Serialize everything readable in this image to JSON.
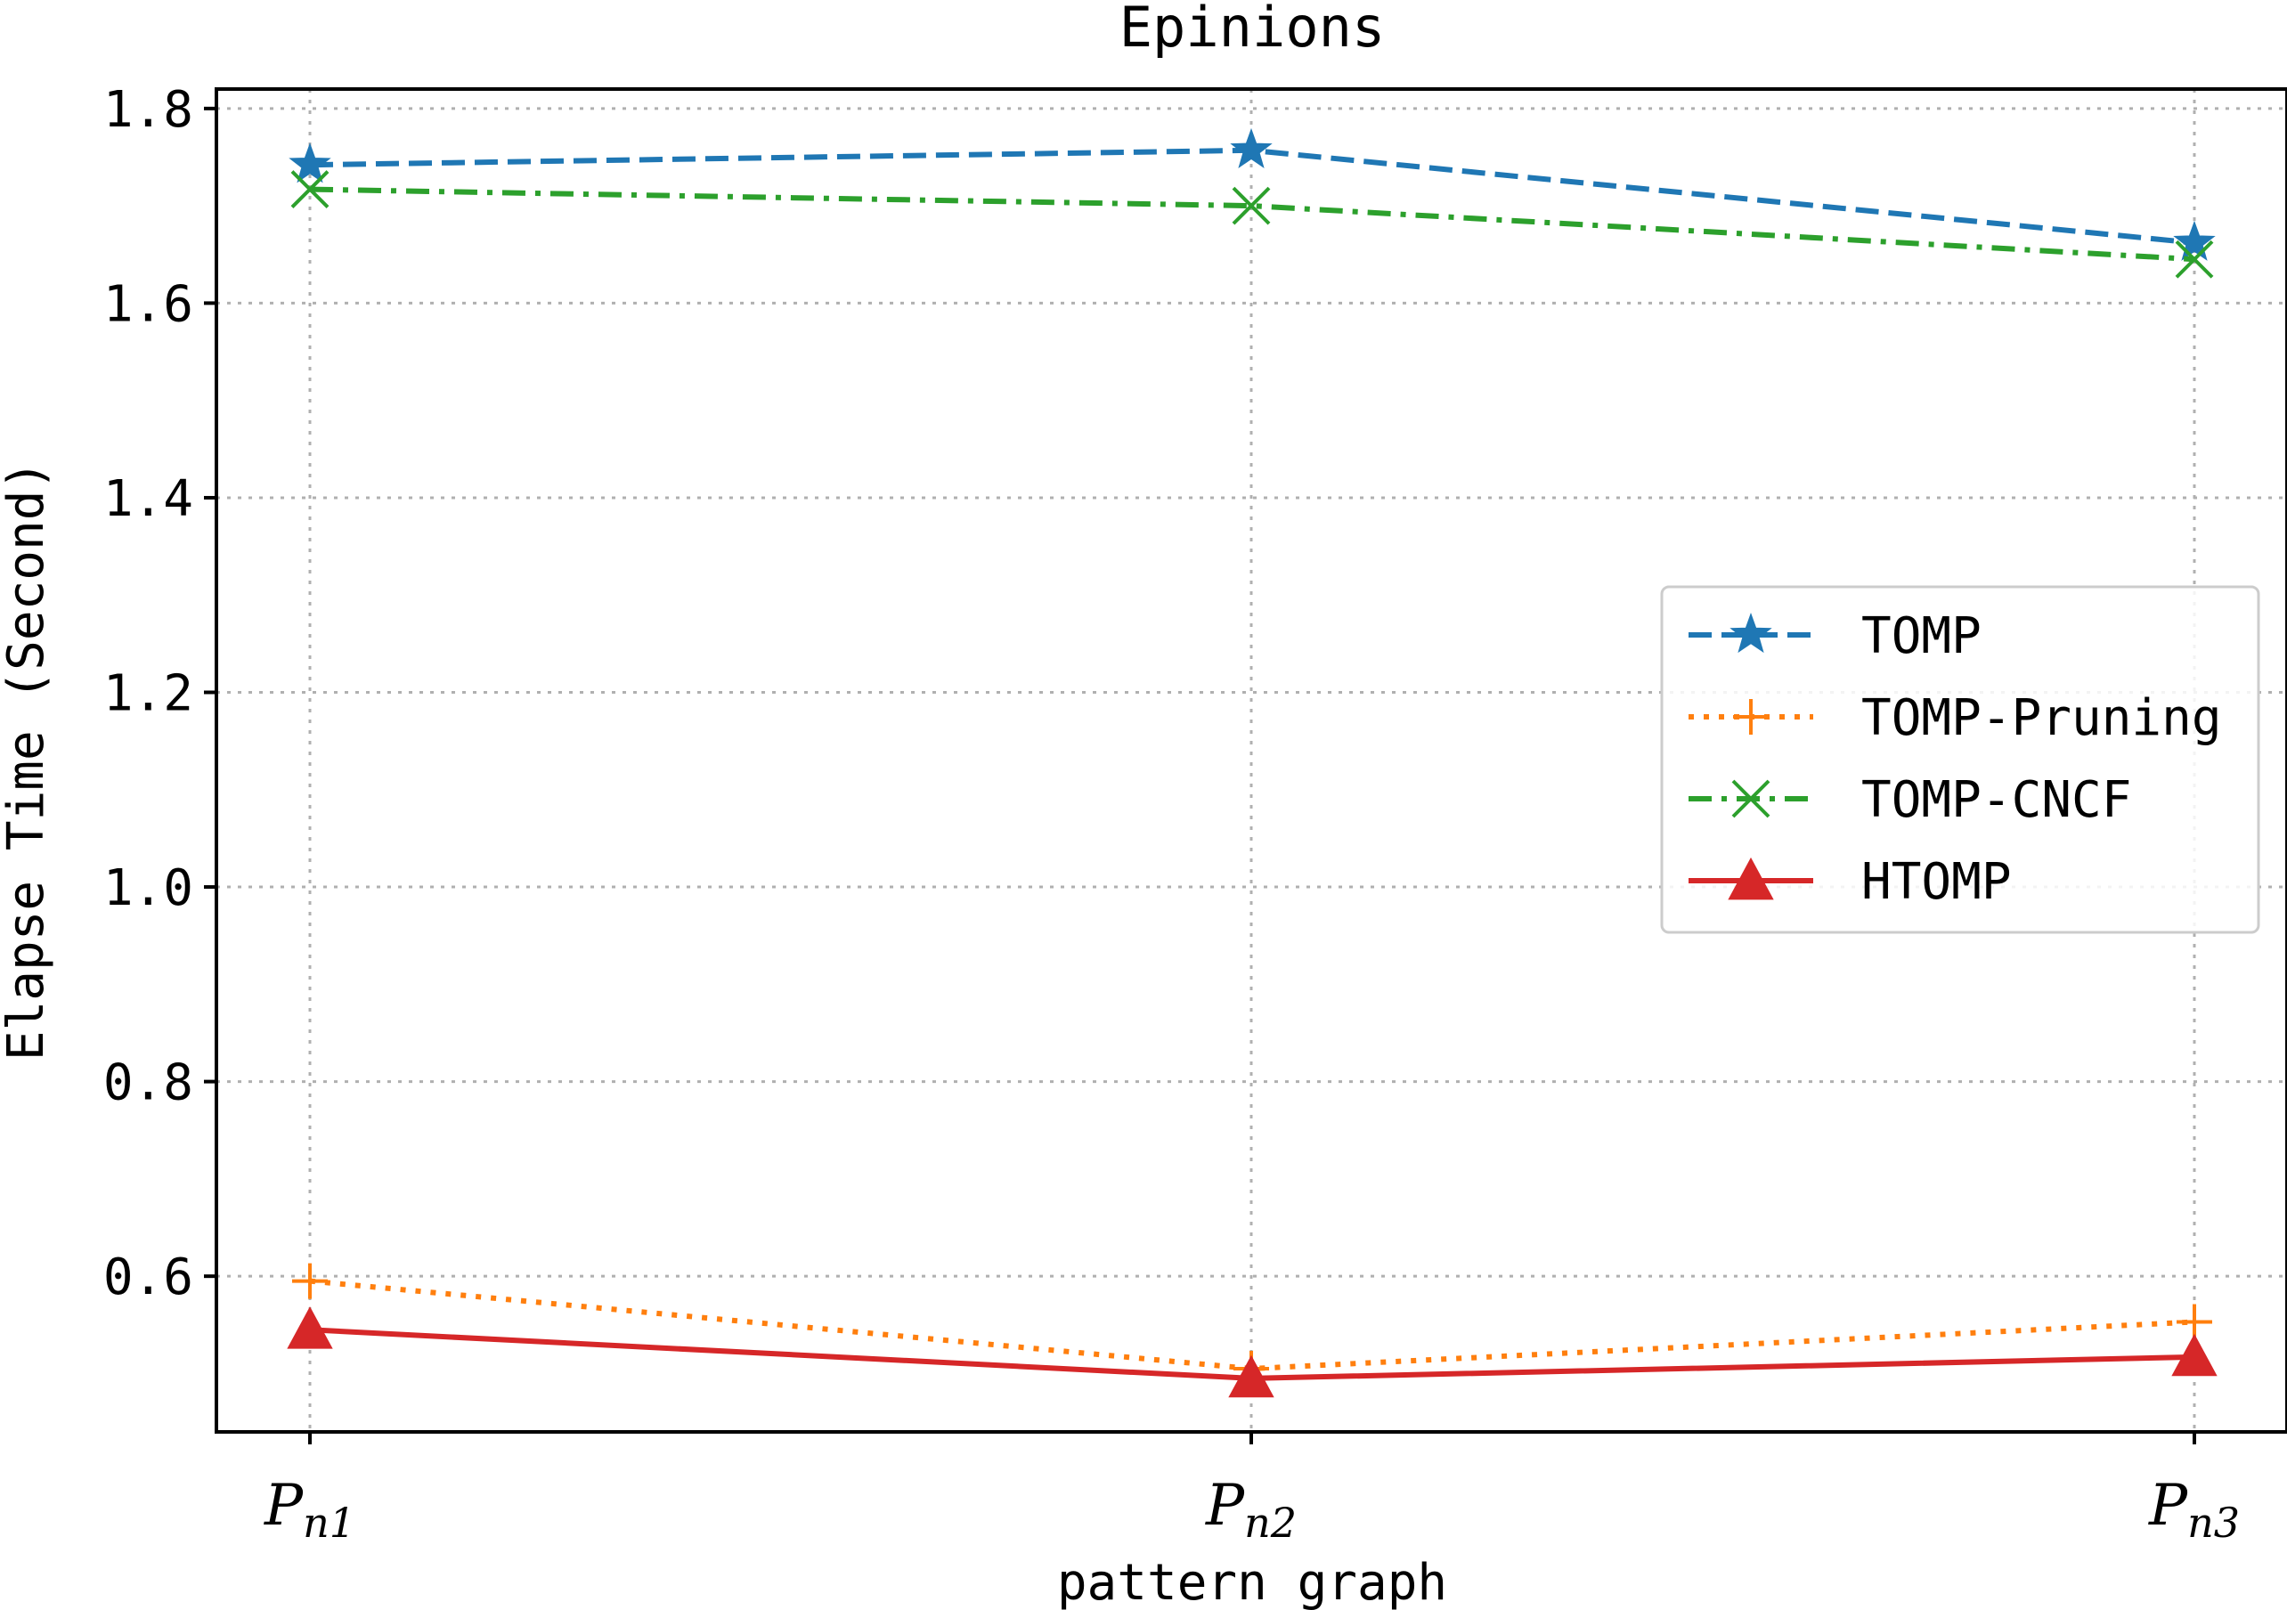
{
  "chart_data": {
    "type": "line",
    "title": "Epinions",
    "xlabel": "pattern graph",
    "ylabel": "Elapse Time (Second)",
    "categories": [
      {
        "main": "P",
        "sub": "n1"
      },
      {
        "main": "P",
        "sub": "n2"
      },
      {
        "main": "P",
        "sub": "n3"
      }
    ],
    "ylim": [
      0.44,
      1.82
    ],
    "yticks": [
      0.6,
      0.8,
      1.0,
      1.2,
      1.4,
      1.6,
      1.8
    ],
    "ytick_labels": [
      "0.6",
      "0.8",
      "1.0",
      "1.2",
      "1.4",
      "1.6",
      "1.8"
    ],
    "grid": true,
    "legend_position": "center-right",
    "series": [
      {
        "name": "TOMP",
        "values": [
          1.742,
          1.757,
          1.662
        ],
        "color": "#1f77b4",
        "linestyle": "dashed",
        "marker": "star"
      },
      {
        "name": "TOMP-Pruning",
        "values": [
          0.595,
          0.505,
          0.553
        ],
        "color": "#ff7f0e",
        "linestyle": "dotted",
        "marker": "plus"
      },
      {
        "name": "TOMP-CNCF",
        "values": [
          1.717,
          1.7,
          1.645
        ],
        "color": "#2ca02c",
        "linestyle": "dashdot",
        "marker": "x"
      },
      {
        "name": "HTOMP",
        "values": [
          0.545,
          0.495,
          0.517
        ],
        "color": "#d62728",
        "linestyle": "solid",
        "marker": "triangle"
      }
    ]
  }
}
